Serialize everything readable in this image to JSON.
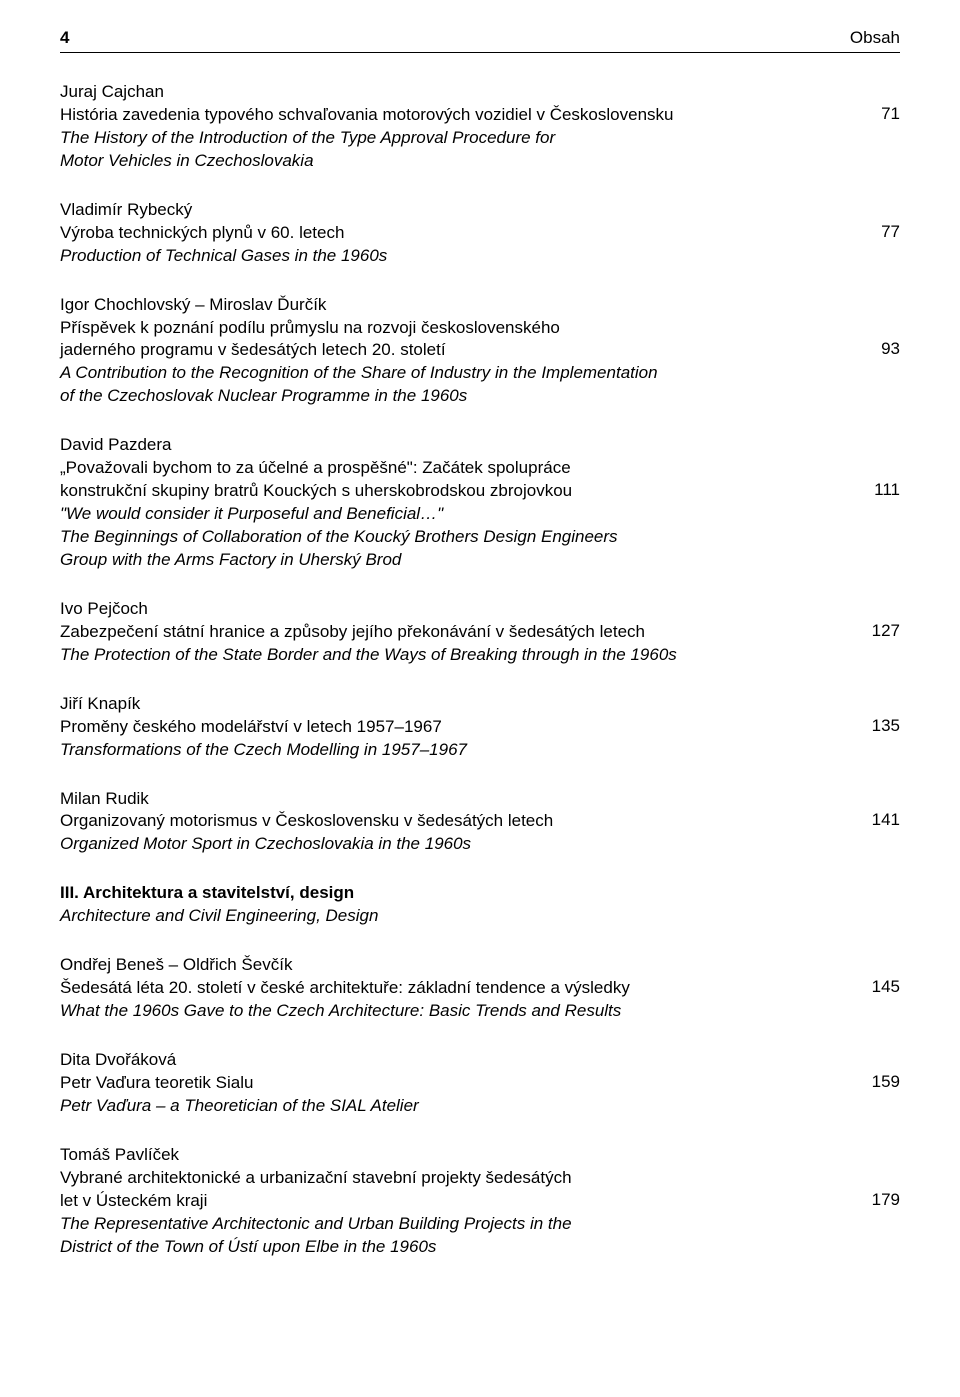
{
  "header": {
    "page_number": "4",
    "title": "Obsah"
  },
  "entries": [
    {
      "author": "Juraj Cajchan",
      "title_lines": [
        "História zavedenia typového schvaľovania motorových vozidiel v Československu"
      ],
      "subtitle_lines": [
        "The History of the Introduction of the Type Approval Procedure for",
        "Motor Vehicles in Czechoslovakia"
      ],
      "page": "71",
      "page_align_line": 1
    },
    {
      "author": "Vladimír Rybecký",
      "title_lines": [
        "Výroba technických plynů v 60. letech"
      ],
      "subtitle_lines": [
        "Production of Technical Gases in the 1960s"
      ],
      "page": "77",
      "page_align_line": 1
    },
    {
      "author": "Igor Chochlovský – Miroslav Ďurčík",
      "title_lines": [
        "Příspěvek k poznání podílu průmyslu na rozvoji československého",
        "jaderného programu v šedesátých letech 20. století"
      ],
      "subtitle_lines": [
        "A Contribution to the Recognition of the Share of Industry in the Implementation",
        "of the Czechoslovak Nuclear Programme in the 1960s"
      ],
      "page": "93",
      "page_align_line": 2
    },
    {
      "author": "David Pazdera",
      "title_lines": [
        "„Považovali bychom to za účelné a prospěšné\": Začátek spolupráce",
        "konstrukční skupiny bratrů Kouckých s uherskobrodskou zbrojovkou"
      ],
      "subtitle_lines": [
        "\"We would consider it Purposeful and Beneficial…\"",
        "The Beginnings of Collaboration of the Koucký Brothers Design Engineers",
        "Group with the Arms Factory in Uherský Brod"
      ],
      "page": "111",
      "page_align_line": 2
    },
    {
      "author": "Ivo Pejčoch",
      "title_lines": [
        "Zabezpečení státní hranice a způsoby jejího překonávání v šedesátých letech"
      ],
      "subtitle_lines": [
        "The Protection of the State Border and the Ways of Breaking through in the 1960s"
      ],
      "page": "127",
      "page_align_line": 1
    },
    {
      "author": "Jiří Knapík",
      "title_lines": [
        "Proměny českého modelářství v letech 1957–1967"
      ],
      "subtitle_lines": [
        "Transformations of the Czech Modelling in 1957–1967"
      ],
      "page": "135",
      "page_align_line": 1
    },
    {
      "author": "Milan Rudik",
      "title_lines": [
        "Organizovaný motorismus v Československu v šedesátých letech"
      ],
      "subtitle_lines": [
        "Organized Motor Sport in Czechoslovakia in the 1960s"
      ],
      "page": "141",
      "page_align_line": 1
    }
  ],
  "section": {
    "heading": "III. Architektura a stavitelství, design",
    "sub": "Architecture and Civil Engineering, Design"
  },
  "entries2": [
    {
      "author": "Ondřej Beneš – Oldřich Ševčík",
      "title_lines": [
        "Šedesátá léta 20. století v české architektuře: základní tendence a výsledky"
      ],
      "subtitle_lines": [
        "What the 1960s Gave to the Czech Architecture: Basic Trends and Results"
      ],
      "page": "145",
      "page_align_line": 1
    },
    {
      "author": "Dita Dvořáková",
      "title_lines": [
        "Petr Vaďura teoretik Sialu"
      ],
      "subtitle_lines": [
        "Petr Vaďura – a Theoretician of the SIAL Atelier"
      ],
      "page": "159",
      "page_align_line": 1
    },
    {
      "author": "Tomáš Pavlíček",
      "title_lines": [
        "Vybrané architektonické a urbanizační stavební projekty šedesátých",
        "let v Ústeckém kraji"
      ],
      "subtitle_lines": [
        "The Representative Architectonic and Urban Building Projects in the",
        "District of the Town of Ústí upon Elbe in the 1960s"
      ],
      "page": "179",
      "page_align_line": 2
    }
  ],
  "styles": {
    "font_family": "Arial, Helvetica, sans-serif",
    "font_size_pt": 13,
    "text_color": "#000000",
    "background_color": "#ffffff",
    "rule_color": "#000000"
  }
}
